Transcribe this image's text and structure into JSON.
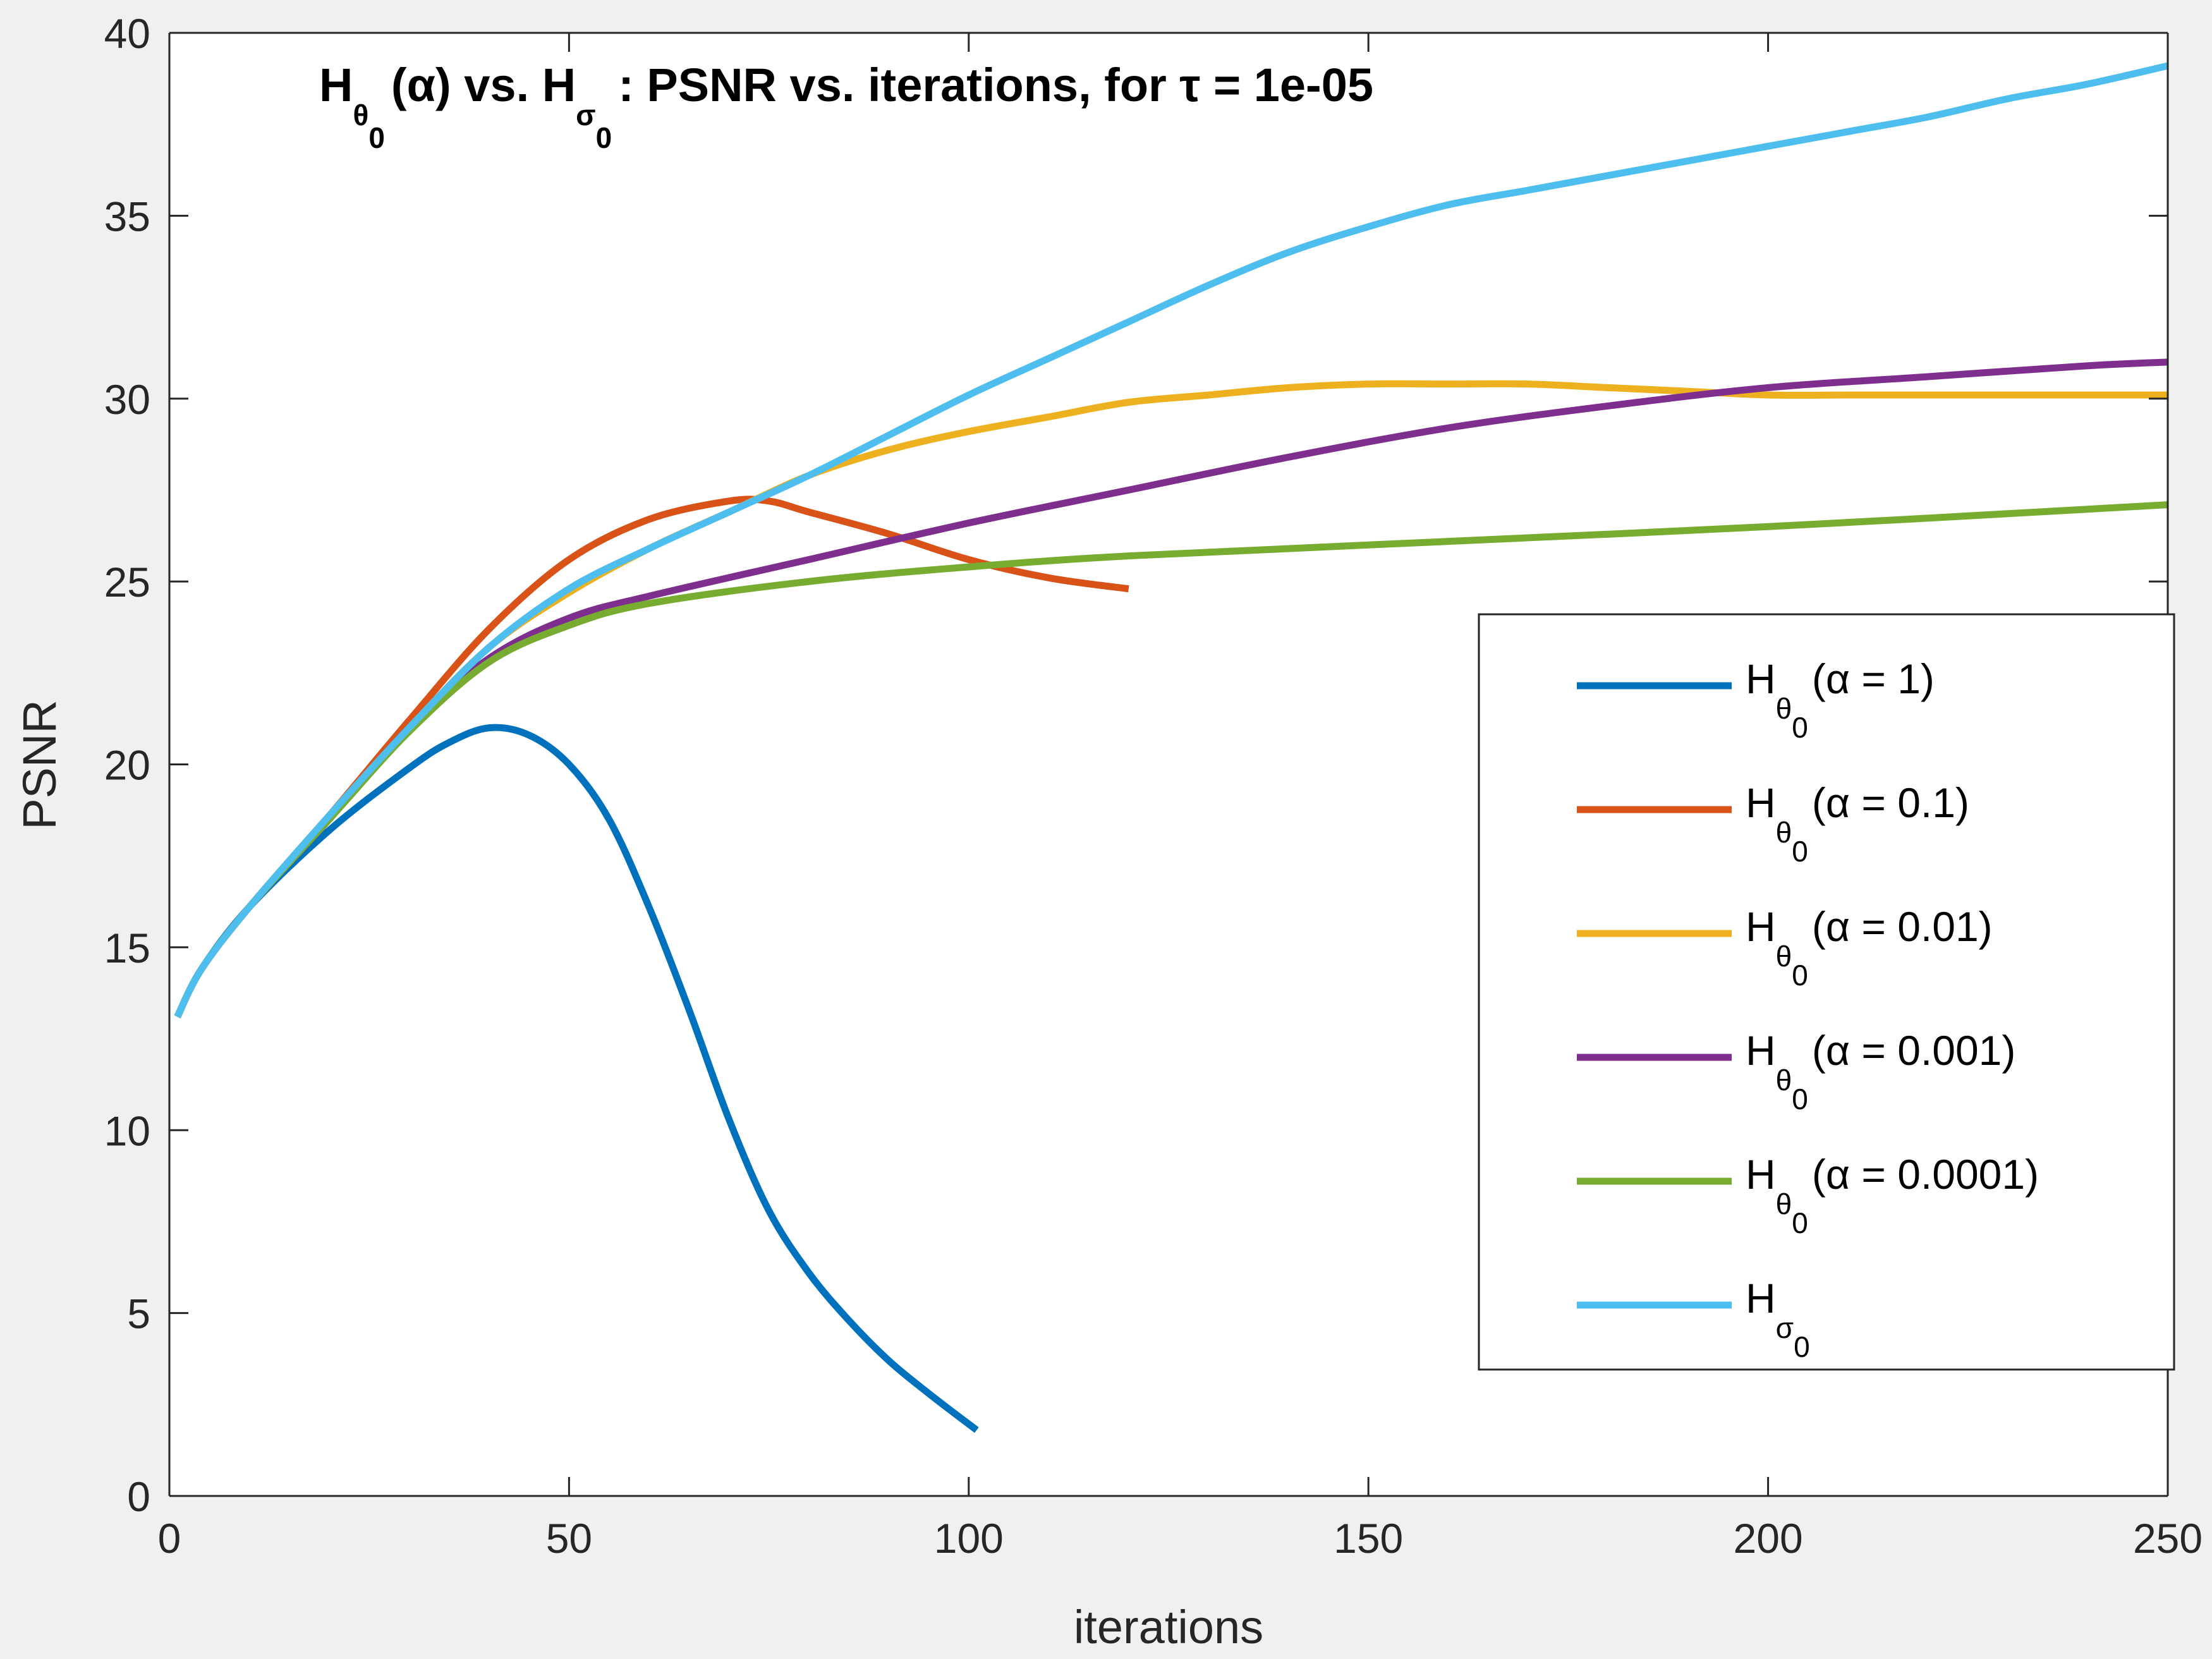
{
  "chart_data": {
    "type": "line",
    "title": {
      "prefix": "H",
      "theta_sub": "θ",
      "zero_sub": "0",
      "mid": "(α) vs. H",
      "sigma_sub": "σ",
      "suffix": ": PSNR vs. iterations, for τ = 1e-05"
    },
    "xlabel": "iterations",
    "ylabel": "PSNR",
    "xlim": [
      0,
      250
    ],
    "ylim": [
      0,
      40
    ],
    "xticks": [
      0,
      50,
      100,
      150,
      200,
      250
    ],
    "yticks": [
      0,
      5,
      10,
      15,
      20,
      25,
      30,
      35,
      40
    ],
    "grid": false,
    "legend_position": "east",
    "series": [
      {
        "name_main": "H",
        "name_sub_symbol": "θ",
        "name_sub_index": "0",
        "name_rest": "(α = 1)",
        "color": "#0072BD",
        "x": [
          1,
          4,
          10,
          20,
          30,
          35,
          40,
          45,
          50,
          55,
          60,
          65,
          70,
          75,
          80,
          85,
          90,
          95,
          101
        ],
        "y": [
          13.1,
          14.4,
          16.1,
          18.2,
          19.9,
          20.6,
          21.0,
          20.8,
          20.0,
          18.5,
          16.1,
          13.3,
          10.3,
          7.8,
          6.1,
          4.8,
          3.7,
          2.8,
          1.8
        ]
      },
      {
        "name_main": "H",
        "name_sub_symbol": "θ",
        "name_sub_index": "0",
        "name_rest": "(α = 0.1)",
        "color": "#D95319",
        "x": [
          1,
          4,
          10,
          20,
          30,
          40,
          50,
          60,
          70,
          75,
          80,
          90,
          100,
          110,
          120
        ],
        "y": [
          13.1,
          14.4,
          16.1,
          18.6,
          21.2,
          23.7,
          25.6,
          26.7,
          27.2,
          27.2,
          26.9,
          26.3,
          25.6,
          25.1,
          24.8
        ]
      },
      {
        "name_main": "H",
        "name_sub_symbol": "θ",
        "name_sub_index": "0",
        "name_rest": "(α = 0.01)",
        "color": "#EDB120",
        "x": [
          1,
          4,
          10,
          20,
          30,
          40,
          50,
          60,
          70,
          80,
          90,
          100,
          110,
          120,
          130,
          140,
          150,
          160,
          170,
          180,
          190,
          200,
          210,
          220,
          230,
          240,
          250
        ],
        "y": [
          13.1,
          14.4,
          16.1,
          18.6,
          21.0,
          23.2,
          24.7,
          25.9,
          26.9,
          27.9,
          28.6,
          29.1,
          29.5,
          29.9,
          30.1,
          30.3,
          30.4,
          30.4,
          30.4,
          30.3,
          30.2,
          30.1,
          30.1,
          30.1,
          30.1,
          30.1,
          30.1
        ]
      },
      {
        "name_main": "H",
        "name_sub_symbol": "θ",
        "name_sub_index": "0",
        "name_rest": "(α = 0.001)",
        "color": "#7E2F8E",
        "x": [
          1,
          4,
          10,
          20,
          30,
          40,
          50,
          60,
          80,
          100,
          120,
          140,
          160,
          180,
          200,
          220,
          240,
          250
        ],
        "y": [
          13.1,
          14.4,
          16.1,
          18.5,
          21.0,
          22.9,
          24.0,
          24.6,
          25.6,
          26.6,
          27.5,
          28.4,
          29.2,
          29.8,
          30.3,
          30.6,
          30.9,
          31.0
        ]
      },
      {
        "name_main": "H",
        "name_sub_symbol": "θ",
        "name_sub_index": "0",
        "name_rest": "(α = 0.0001)",
        "color": "#77AC30",
        "x": [
          1,
          4,
          10,
          20,
          30,
          40,
          50,
          60,
          80,
          100,
          120,
          150,
          200,
          250
        ],
        "y": [
          13.1,
          14.4,
          16.1,
          18.5,
          20.9,
          22.8,
          23.8,
          24.4,
          25.0,
          25.4,
          25.7,
          26.0,
          26.5,
          27.1
        ]
      },
      {
        "name_main": "H",
        "name_sub_symbol": "σ",
        "name_sub_index": "0",
        "name_rest": "",
        "color": "#4DBEEE",
        "x": [
          1,
          4,
          10,
          20,
          30,
          40,
          50,
          60,
          70,
          80,
          90,
          100,
          110,
          120,
          130,
          140,
          150,
          160,
          170,
          180,
          190,
          200,
          210,
          220,
          230,
          240,
          250
        ],
        "y": [
          13.1,
          14.4,
          16.1,
          18.6,
          21.0,
          23.2,
          24.8,
          25.9,
          26.9,
          27.9,
          29.0,
          30.1,
          31.1,
          32.1,
          33.1,
          34.0,
          34.7,
          35.3,
          35.7,
          36.1,
          36.5,
          36.9,
          37.3,
          37.7,
          38.2,
          38.6,
          39.1
        ]
      }
    ]
  }
}
